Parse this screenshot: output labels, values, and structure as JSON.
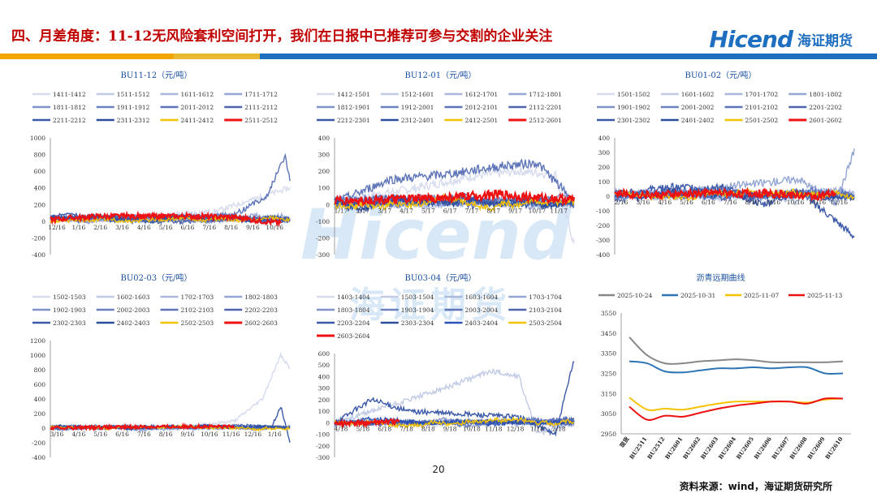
{
  "header": {
    "title": "四、月差角度：11-12无风险套利空间打开，我们在日报中已推荐可参与交割的企业关注",
    "logo_text": "Hicend",
    "logo_cn": "海证期货"
  },
  "watermark": {
    "en": "Hicend",
    "cn": "海证期货"
  },
  "footer": {
    "page": "20",
    "source": "资料来源：wind，海证期货研究所"
  },
  "colors": {
    "title": "#c00000",
    "brand": "#1f6fc0",
    "stripe_orange": "#f0a500",
    "stripe_blue": "#1f6fc0"
  },
  "chart_data": [
    {
      "type": "line",
      "title": "BU11-12（元/吨）",
      "legend": [
        "1411-1412",
        "1511-1512",
        "1611-1612",
        "1711-1712",
        "1811-1812",
        "1911-1912",
        "2011-2012",
        "2111-2112",
        "2211-2212",
        "2311-2312",
        "2411-2412",
        "2511-2512"
      ],
      "legend_colors": [
        "#d6dbee",
        "#c2cbe6",
        "#aab8dd",
        "#94a6d4",
        "#7f92c8",
        "#6a80bf",
        "#5d74b8",
        "#4f66ae",
        "#3b59a8",
        "#2c4c9e",
        "#f5c200",
        "#ee1111"
      ],
      "legend_bold": [
        "2511-2512"
      ],
      "yticks": [
        -400,
        -200,
        0,
        200,
        400,
        600,
        800,
        1000
      ],
      "ylim": [
        -400,
        1000
      ],
      "xticks": [
        "12/16",
        "1/16",
        "2/16",
        "3/16",
        "4/16",
        "5/16",
        "6/16",
        "7/16",
        "8/16",
        "9/16",
        "10/16"
      ],
      "n": 260,
      "seed": 11,
      "base": 30,
      "amp": 70,
      "series": [
        {
          "name": "1411-1412",
          "points": [
            [
              0,
              20
            ],
            [
              100,
              60
            ],
            [
              180,
              120
            ],
            [
              230,
              300
            ],
            [
              260,
              400
            ]
          ]
        },
        {
          "name": "2011-2012",
          "points": [
            [
              0,
              40
            ],
            [
              120,
              40
            ],
            [
              200,
              80
            ],
            [
              235,
              300
            ],
            [
              250,
              680
            ],
            [
              255,
              780
            ],
            [
              260,
              500
            ]
          ]
        },
        {
          "name": "2511-2512",
          "points": [
            [
              0,
              20
            ],
            [
              50,
              60
            ],
            [
              100,
              60
            ],
            [
              150,
              60
            ],
            [
              200,
              50
            ],
            [
              230,
              0
            ],
            [
              250,
              -20
            ]
          ]
        }
      ]
    },
    {
      "type": "line",
      "title": "BU12-01（元/吨）",
      "legend": [
        "1412-1501",
        "1512-1601",
        "1612-1701",
        "1712-1801",
        "1812-1901",
        "1912-2001",
        "2012-2101",
        "2112-2201",
        "2212-2301",
        "2312-2401",
        "2412-2501",
        "2512-2601"
      ],
      "legend_colors": [
        "#d6dbee",
        "#c2cbe6",
        "#aab8dd",
        "#94a6d4",
        "#7f92c8",
        "#6a80bf",
        "#5d74b8",
        "#4f66ae",
        "#3b59a8",
        "#2c4c9e",
        "#f5c200",
        "#ee1111"
      ],
      "legend_bold": [
        "2512-2601"
      ],
      "yticks": [
        -300,
        -200,
        -100,
        0,
        100,
        200,
        300,
        400
      ],
      "ylim": [
        -300,
        400
      ],
      "xticks": [
        "1/17",
        "2/17",
        "3/17",
        "4/17",
        "5/17",
        "6/17",
        "7/17",
        "8/17",
        "9/17",
        "10/17",
        "11/17"
      ],
      "n": 260,
      "seed": 7,
      "base": 20,
      "amp": 60,
      "series": [
        {
          "name": "1412-1501",
          "points": [
            [
              0,
              20
            ],
            [
              80,
              90
            ],
            [
              150,
              170
            ],
            [
              200,
              200
            ],
            [
              240,
              180
            ],
            [
              260,
              -240
            ]
          ]
        },
        {
          "name": "2012-2101",
          "points": [
            [
              0,
              10
            ],
            [
              60,
              150
            ],
            [
              120,
              180
            ],
            [
              180,
              230
            ],
            [
              220,
              250
            ],
            [
              260,
              20
            ]
          ]
        },
        {
          "name": "2512-2601",
          "points": [
            [
              0,
              20
            ],
            [
              60,
              30
            ],
            [
              120,
              40
            ],
            [
              180,
              60
            ],
            [
              220,
              40
            ],
            [
              260,
              30
            ]
          ]
        }
      ]
    },
    {
      "type": "line",
      "title": "BU01-02（元/吨）",
      "legend": [
        "1501-1502",
        "1601-1602",
        "1701-1702",
        "1801-1802",
        "1901-1902",
        "2001-2002",
        "2101-2102",
        "2201-2202",
        "2301-2302",
        "2401-2402",
        "2501-2502",
        "2601-2602"
      ],
      "legend_colors": [
        "#d6dbee",
        "#c2cbe6",
        "#aab8dd",
        "#94a6d4",
        "#7f92c8",
        "#6a80bf",
        "#5d74b8",
        "#4f66ae",
        "#3b59a8",
        "#2c4c9e",
        "#f5c200",
        "#ee1111"
      ],
      "legend_bold": [
        "2601-2602"
      ],
      "yticks": [
        -400,
        -300,
        -200,
        -100,
        0,
        100,
        200,
        300,
        400
      ],
      "ylim": [
        -400,
        400
      ],
      "xticks": [
        "2/16",
        "3/16",
        "4/16",
        "5/16",
        "6/16",
        "7/16",
        "8/16",
        "9/16",
        "10/16",
        "11/16",
        "12/16"
      ],
      "n": 260,
      "seed": 3,
      "base": 10,
      "amp": 60,
      "series": [
        {
          "name": "2301-2302",
          "points": [
            [
              0,
              10
            ],
            [
              60,
              60
            ],
            [
              120,
              60
            ],
            [
              160,
              -60
            ],
            [
              200,
              40
            ],
            [
              260,
              -280
            ]
          ]
        },
        {
          "name": "1801-1802",
          "points": [
            [
              0,
              0
            ],
            [
              100,
              50
            ],
            [
              200,
              120
            ],
            [
              240,
              -50
            ],
            [
              260,
              320
            ]
          ]
        },
        {
          "name": "2601-2602",
          "points": [
            [
              0,
              20
            ],
            [
              40,
              10
            ],
            [
              100,
              20
            ],
            [
              160,
              20
            ],
            [
              220,
              0
            ],
            [
              240,
              20
            ]
          ]
        }
      ]
    },
    {
      "type": "line",
      "title": "BU02-03（元/吨）",
      "legend": [
        "1502-1503",
        "1602-1603",
        "1702-1703",
        "1802-1803",
        "1902-1903",
        "2002-2003",
        "2102-2103",
        "2202-2203",
        "2302-2303",
        "2402-2403",
        "2502-2503",
        "2602-2603"
      ],
      "legend_colors": [
        "#d6dbee",
        "#c2cbe6",
        "#aab8dd",
        "#94a6d4",
        "#7f92c8",
        "#6a80bf",
        "#5d74b8",
        "#4f66ae",
        "#3b59a8",
        "#2c4c9e",
        "#f5c200",
        "#ee1111"
      ],
      "legend_bold": [
        "2602-2603"
      ],
      "yticks": [
        -400,
        -200,
        0,
        200,
        400,
        600,
        800,
        1000,
        1200
      ],
      "ylim": [
        -400,
        1200
      ],
      "xticks": [
        "3/16",
        "4/16",
        "5/16",
        "6/16",
        "7/16",
        "8/16",
        "9/16",
        "10/16",
        "11/16",
        "12/16",
        "1/16"
      ],
      "n": 260,
      "seed": 19,
      "base": 10,
      "amp": 50,
      "series": [
        {
          "name": "1502-1503",
          "points": [
            [
              0,
              0
            ],
            [
              150,
              20
            ],
            [
              200,
              100
            ],
            [
              230,
              400
            ],
            [
              250,
              1000
            ],
            [
              260,
              820
            ]
          ]
        },
        {
          "name": "2302-2303",
          "points": [
            [
              0,
              0
            ],
            [
              100,
              20
            ],
            [
              200,
              20
            ],
            [
              240,
              10
            ],
            [
              250,
              300
            ],
            [
              260,
              -200
            ]
          ]
        },
        {
          "name": "2602-2603",
          "points": [
            [
              0,
              0
            ],
            [
              60,
              10
            ],
            [
              120,
              20
            ],
            [
              200,
              20
            ]
          ]
        }
      ]
    },
    {
      "type": "line",
      "title": "BU03-04（元/吨）",
      "legend": [
        "1403-1404",
        "1503-1504",
        "1603-1604",
        "1703-1704",
        "1803-1804",
        "1903-1904",
        "2003-2004",
        "2103-2104",
        "2203-2204",
        "2303-2304",
        "2403-2404",
        "2503-2504",
        "2603-2604"
      ],
      "legend_colors": [
        "#d6dbee",
        "#c2cbe6",
        "#aab8dd",
        "#94a6d4",
        "#7f92c8",
        "#6a80bf",
        "#5d74b8",
        "#4f66ae",
        "#3b59a8",
        "#2c4c9e",
        "#2a52b8",
        "#f5c200",
        "#ee1111"
      ],
      "legend_bold": [
        "2603-2604"
      ],
      "yticks": [
        -300,
        -200,
        -100,
        0,
        100,
        200,
        300,
        400,
        500,
        600
      ],
      "ylim": [
        -300,
        600
      ],
      "xticks": [
        "4/18",
        "5/18",
        "6/18",
        "7/18",
        "8/18",
        "9/18",
        "10/18",
        "11/18",
        "12/18",
        "1/18",
        "2/18"
      ],
      "n": 260,
      "seed": 23,
      "base": 0,
      "amp": 50,
      "series": [
        {
          "name": "1503-1504",
          "points": [
            [
              0,
              0
            ],
            [
              60,
              150
            ],
            [
              120,
              300
            ],
            [
              170,
              450
            ],
            [
              200,
              400
            ],
            [
              220,
              -100
            ],
            [
              260,
              0
            ]
          ]
        },
        {
          "name": "2203-2204",
          "points": [
            [
              0,
              0
            ],
            [
              40,
              200
            ],
            [
              80,
              100
            ],
            [
              200,
              50
            ],
            [
              240,
              -100
            ],
            [
              260,
              550
            ]
          ]
        },
        {
          "name": "2603-2604",
          "points": [
            [
              0,
              -10
            ],
            [
              40,
              0
            ],
            [
              70,
              10
            ]
          ]
        }
      ]
    },
    {
      "type": "line",
      "title": "沥青远期曲线",
      "x": [
        "现货",
        "BU2511",
        "BU2512",
        "BU2601",
        "BU2602",
        "BU2603",
        "BU2604",
        "BU2605",
        "BU2606",
        "BU2607",
        "BU2608",
        "BU2609",
        "BU2610"
      ],
      "yticks": [
        2950,
        3050,
        3150,
        3250,
        3350,
        3450,
        3550
      ],
      "ylim": [
        2950,
        3550
      ],
      "series": [
        {
          "name": "2025-10-24",
          "color": "#888888",
          "values": [
            3430,
            3340,
            3300,
            3300,
            3310,
            3315,
            3320,
            3315,
            3305,
            3305,
            3305,
            3305,
            3310
          ]
        },
        {
          "name": "2025-10-31",
          "color": "#2e75b6",
          "values": [
            3310,
            3300,
            3260,
            3255,
            3265,
            3275,
            3275,
            3280,
            3275,
            3280,
            3280,
            3250,
            3250
          ]
        },
        {
          "name": "2025-11-07",
          "color": "#f5c200",
          "values": [
            3130,
            3070,
            3075,
            3070,
            3085,
            3100,
            3110,
            3110,
            3110,
            3110,
            3105,
            3120,
            3125
          ]
        },
        {
          "name": "2025-11-13",
          "color": "#ee1111",
          "values": [
            3085,
            3020,
            3040,
            3035,
            3055,
            3075,
            3090,
            3100,
            3110,
            3110,
            3100,
            3125,
            3125
          ]
        }
      ]
    }
  ]
}
